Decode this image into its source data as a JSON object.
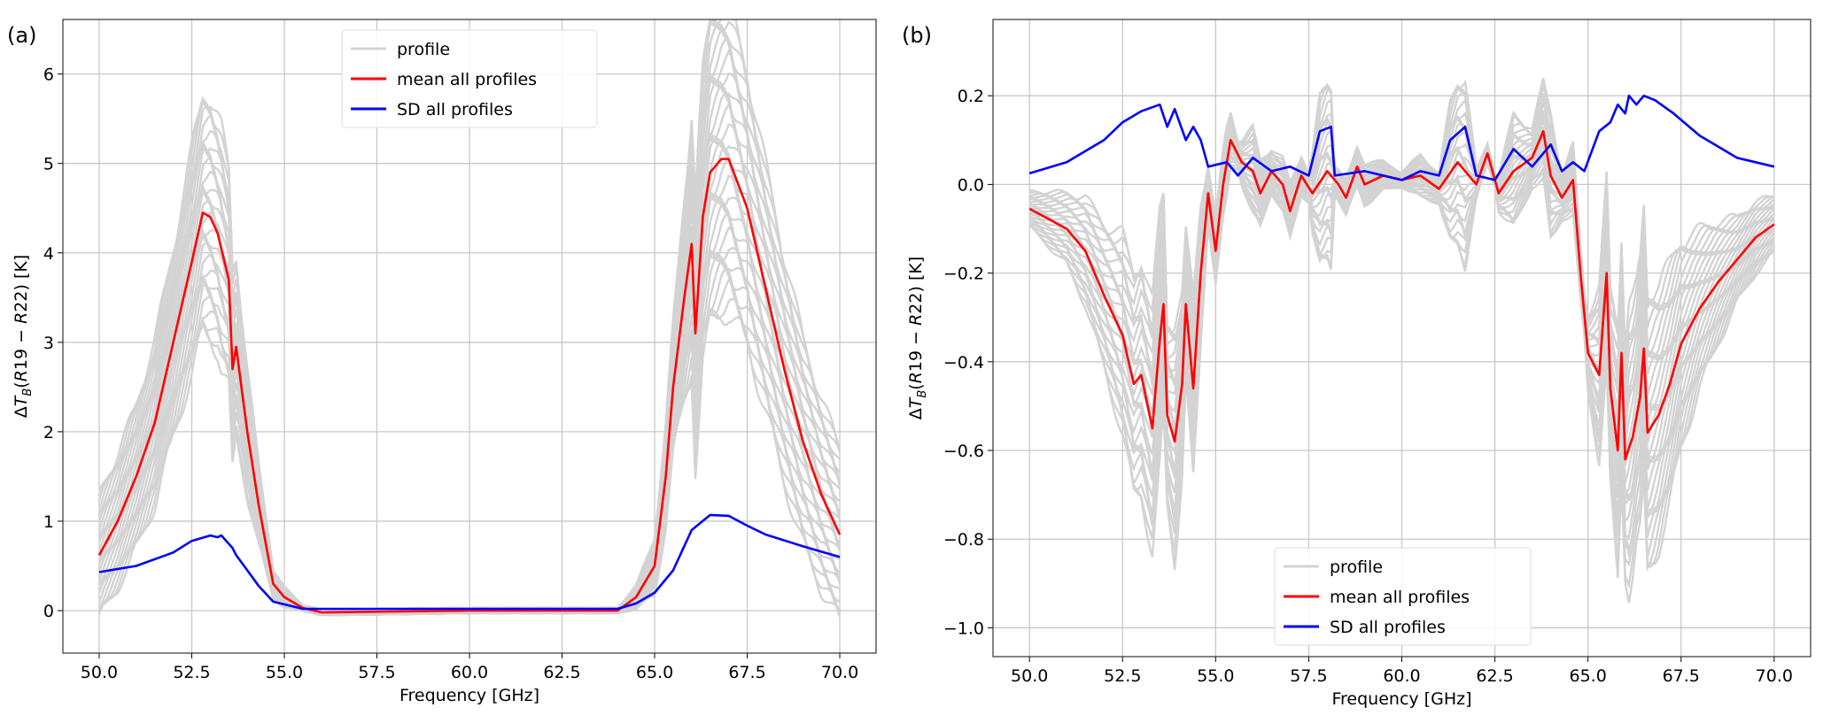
{
  "chart_data": [
    {
      "panel_label": "(a)",
      "type": "line",
      "xlabel": "Frequency [GHz]",
      "ylabel": "ΔT_B(R19 − R22) [K]",
      "xlim": [
        49.02,
        70.98
      ],
      "ylim": [
        -0.475,
        6.61
      ],
      "xticks": [
        "50.0",
        "52.5",
        "55.0",
        "57.5",
        "60.0",
        "62.5",
        "65.0",
        "67.5",
        "70.0"
      ],
      "yticks": [
        "0",
        "1",
        "2",
        "3",
        "4",
        "5",
        "6"
      ],
      "grid": true,
      "legend_placement": "upper-center",
      "legend": [
        "profile",
        "mean all profiles",
        "SD all profiles"
      ],
      "colors": {
        "profile": "#d3d3d3",
        "mean": "#ff0000",
        "sd": "#0000ff"
      },
      "series": [
        {
          "name": "mean all profiles",
          "x": [
            50,
            50.5,
            51,
            51.5,
            52,
            52.5,
            52.8,
            53,
            53.2,
            53.5,
            53.6,
            53.7,
            54,
            54.3,
            54.7,
            55,
            55.5,
            56,
            58,
            60,
            62,
            63.5,
            64,
            64.5,
            65,
            65.3,
            65.5,
            65.8,
            66,
            66.1,
            66.3,
            66.5,
            66.8,
            67,
            67.5,
            68,
            68.5,
            69,
            69.5,
            70
          ],
          "y": [
            0.62,
            1.0,
            1.5,
            2.1,
            3.0,
            3.9,
            4.45,
            4.4,
            4.22,
            3.7,
            2.7,
            2.95,
            2.0,
            1.2,
            0.3,
            0.15,
            0.03,
            -0.02,
            -0.01,
            0.0,
            0.0,
            0.0,
            0.0,
            0.15,
            0.5,
            1.5,
            2.5,
            3.5,
            4.1,
            3.1,
            4.4,
            4.9,
            5.05,
            5.05,
            4.5,
            3.6,
            2.7,
            1.9,
            1.3,
            0.85
          ]
        },
        {
          "name": "SD all profiles",
          "x": [
            50,
            51,
            52,
            52.5,
            53,
            53.2,
            53.3,
            53.6,
            53.7,
            54,
            54.3,
            54.7,
            55.5,
            56,
            60,
            63.5,
            64,
            64.5,
            65,
            65.5,
            66,
            66.5,
            67,
            67.5,
            68,
            69,
            70
          ],
          "y": [
            0.43,
            0.5,
            0.65,
            0.78,
            0.84,
            0.82,
            0.84,
            0.7,
            0.62,
            0.45,
            0.28,
            0.1,
            0.02,
            0.02,
            0.02,
            0.02,
            0.02,
            0.08,
            0.2,
            0.45,
            0.9,
            1.07,
            1.06,
            0.95,
            0.85,
            0.72,
            0.6
          ]
        }
      ],
      "profile_name": "profile"
    },
    {
      "panel_label": "(b)",
      "type": "line",
      "xlabel": "Frequency [GHz]",
      "ylabel": "ΔT_B(R19 − R22) [K]",
      "xlim": [
        49.02,
        70.98
      ],
      "ylim": [
        -1.065,
        0.372
      ],
      "xticks": [
        "50.0",
        "52.5",
        "55.0",
        "57.5",
        "60.0",
        "62.5",
        "65.0",
        "67.5",
        "70.0"
      ],
      "yticks": [
        "−1.0",
        "−0.8",
        "−0.6",
        "−0.4",
        "−0.2",
        "0.0",
        "0.2"
      ],
      "grid": true,
      "legend_placement": "lower-center",
      "legend": [
        "profile",
        "mean all profiles",
        "SD all profiles"
      ],
      "colors": {
        "profile": "#d3d3d3",
        "mean": "#ff0000",
        "sd": "#0000ff"
      },
      "series": [
        {
          "name": "mean all profiles",
          "x": [
            50,
            51,
            51.5,
            52,
            52.5,
            52.8,
            53,
            53.3,
            53.5,
            53.6,
            53.7,
            53.9,
            54.1,
            54.2,
            54.4,
            54.6,
            54.8,
            55,
            55.2,
            55.4,
            55.7,
            56,
            56.2,
            56.5,
            56.8,
            57,
            57.3,
            57.6,
            58,
            58.3,
            58.5,
            58.8,
            59,
            59.5,
            60,
            60.5,
            61,
            61.5,
            62,
            62.3,
            62.6,
            63,
            63.5,
            63.8,
            64,
            64.3,
            64.6,
            64.8,
            65,
            65.3,
            65.5,
            65.6,
            65.8,
            65.9,
            66,
            66.2,
            66.4,
            66.5,
            66.6,
            66.9,
            67.2,
            67.5,
            68,
            68.5,
            69,
            69.5,
            70
          ],
          "y": [
            -0.055,
            -0.1,
            -0.15,
            -0.25,
            -0.34,
            -0.45,
            -0.43,
            -0.55,
            -0.35,
            -0.27,
            -0.52,
            -0.58,
            -0.45,
            -0.27,
            -0.46,
            -0.2,
            -0.02,
            -0.15,
            0.0,
            0.1,
            0.05,
            0.03,
            -0.02,
            0.03,
            0.0,
            -0.06,
            0.02,
            -0.02,
            0.03,
            0.0,
            -0.03,
            0.04,
            0.0,
            0.02,
            0.01,
            0.02,
            -0.01,
            0.05,
            0.0,
            0.07,
            -0.02,
            0.03,
            0.06,
            0.12,
            0.02,
            -0.03,
            0.01,
            -0.2,
            -0.38,
            -0.43,
            -0.2,
            -0.46,
            -0.6,
            -0.38,
            -0.62,
            -0.57,
            -0.48,
            -0.37,
            -0.56,
            -0.52,
            -0.45,
            -0.36,
            -0.28,
            -0.22,
            -0.17,
            -0.12,
            -0.09
          ]
        },
        {
          "name": "SD all profiles",
          "x": [
            50,
            51,
            52,
            52.5,
            53,
            53.5,
            53.7,
            53.9,
            54.2,
            54.4,
            54.6,
            54.8,
            55.3,
            55.6,
            56,
            56.5,
            57,
            57.5,
            57.8,
            58.1,
            58.2,
            59,
            60,
            60.5,
            61,
            61.3,
            61.7,
            62,
            62.5,
            63,
            63.5,
            64,
            64.3,
            64.6,
            64.9,
            65.3,
            65.6,
            65.8,
            66,
            66.1,
            66.3,
            66.5,
            66.8,
            67.3,
            68,
            69,
            70
          ],
          "y": [
            0.025,
            0.05,
            0.1,
            0.14,
            0.165,
            0.18,
            0.13,
            0.17,
            0.1,
            0.13,
            0.1,
            0.04,
            0.05,
            0.02,
            0.06,
            0.03,
            0.04,
            0.02,
            0.12,
            0.13,
            0.02,
            0.03,
            0.01,
            0.03,
            0.02,
            0.1,
            0.13,
            0.02,
            0.01,
            0.08,
            0.04,
            0.09,
            0.03,
            0.05,
            0.03,
            0.12,
            0.14,
            0.18,
            0.16,
            0.2,
            0.18,
            0.2,
            0.19,
            0.16,
            0.11,
            0.06,
            0.04
          ]
        }
      ],
      "profile_name": "profile"
    }
  ]
}
